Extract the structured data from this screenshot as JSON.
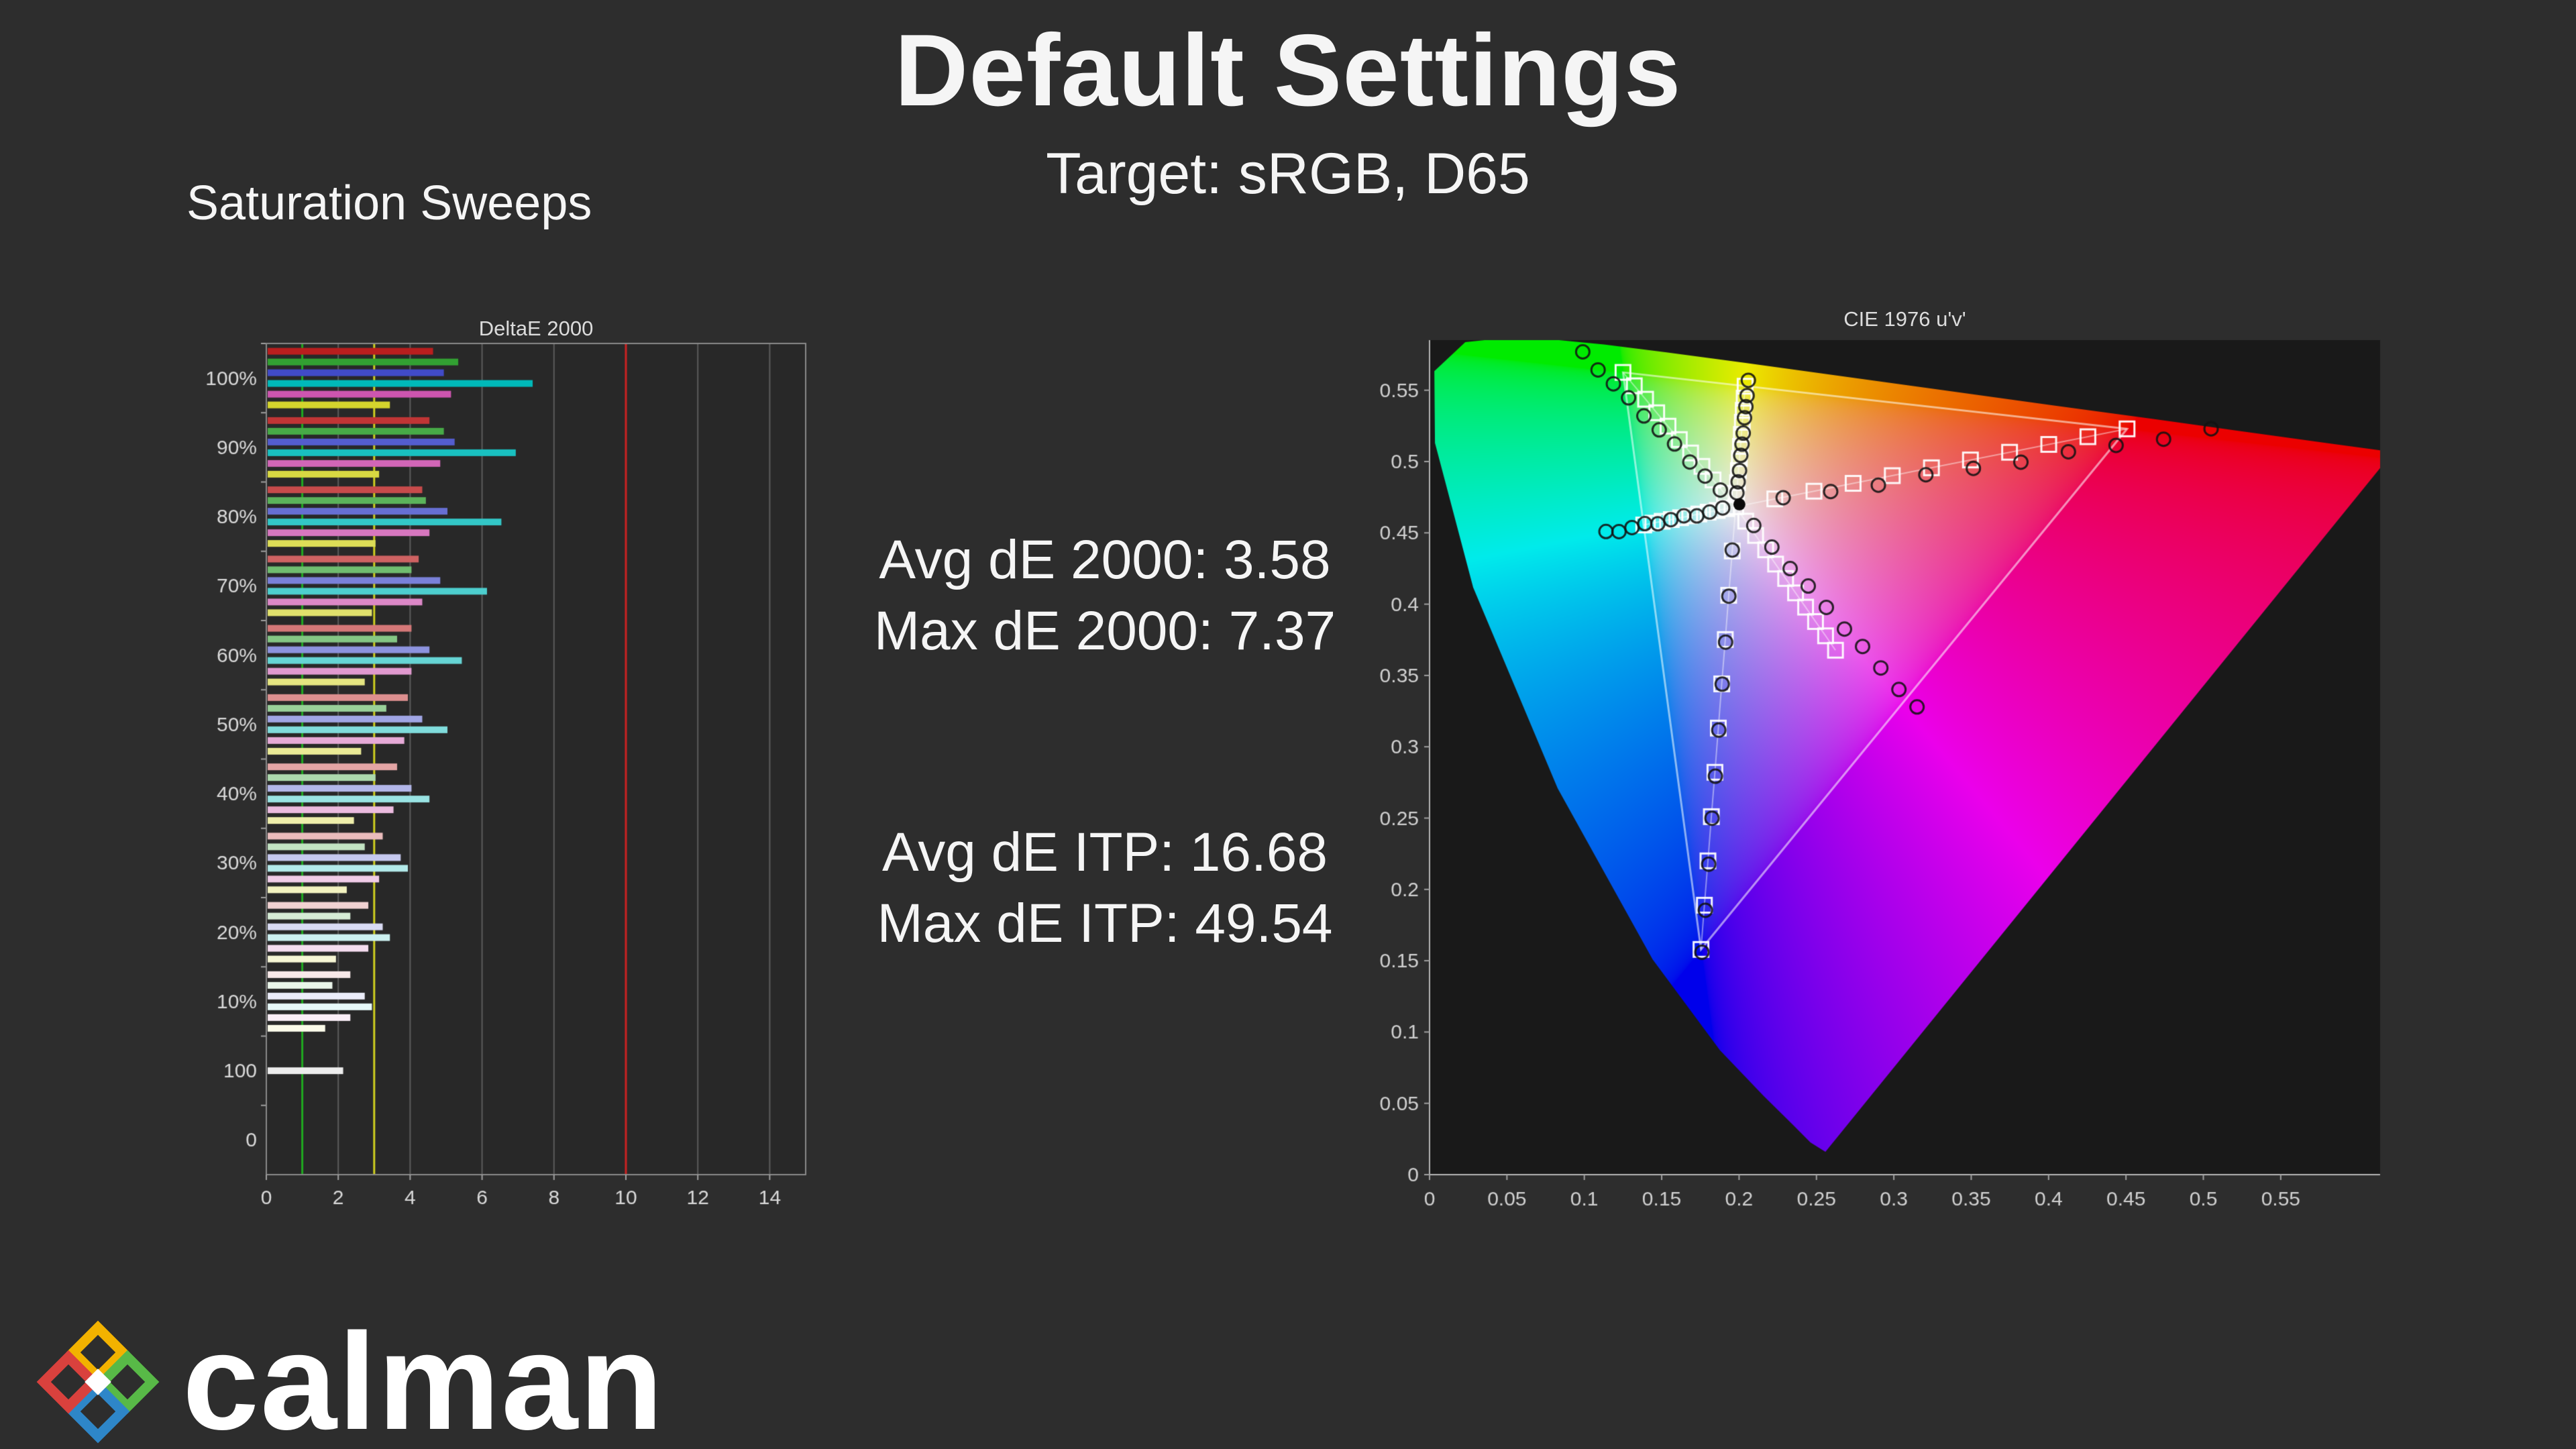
{
  "page": {
    "title": "Default Settings",
    "subtitle": "Target: sRGB, D65",
    "section_title": "Saturation Sweeps",
    "background": "#2d2d2d"
  },
  "stats": {
    "avg_de2000": "Avg dE 2000: 3.58",
    "max_de2000": "Max dE 2000: 7.37",
    "avg_deitp": "Avg dE ITP: 16.68",
    "max_deitp": "Max dE ITP: 49.54"
  },
  "logo": {
    "text": "calman"
  },
  "chart_data": [
    {
      "type": "bar",
      "title": "DeltaE 2000",
      "orientation": "horizontal",
      "categories": [
        "100%",
        "90%",
        "80%",
        "70%",
        "60%",
        "50%",
        "40%",
        "30%",
        "20%",
        "10%",
        "100",
        "0"
      ],
      "x_ticks": [
        0,
        2,
        4,
        6,
        8,
        10,
        12,
        14
      ],
      "xlim": [
        0,
        15
      ],
      "reference_lines": [
        {
          "value": 1,
          "color": "#1faa1f"
        },
        {
          "value": 3,
          "color": "#cfcf1f"
        },
        {
          "value": 10,
          "color": "#cc2222"
        }
      ],
      "series": [
        {
          "name": "Red",
          "rgb": [
            185,
            30,
            30
          ],
          "values": [
            4.6,
            4.5,
            4.3,
            4.2,
            4.0,
            3.9,
            3.6,
            3.2,
            2.8,
            2.3,
            null,
            null
          ]
        },
        {
          "name": "Green",
          "rgb": [
            50,
            160,
            50
          ],
          "values": [
            5.3,
            4.9,
            4.4,
            4.0,
            3.6,
            3.3,
            3.0,
            2.7,
            2.3,
            1.8,
            null,
            null
          ]
        },
        {
          "name": "Blue",
          "rgb": [
            65,
            75,
            200
          ],
          "values": [
            4.9,
            5.2,
            5.0,
            4.8,
            4.5,
            4.3,
            4.0,
            3.7,
            3.2,
            2.7,
            null,
            null
          ]
        },
        {
          "name": "Cyan",
          "rgb": [
            0,
            185,
            185
          ],
          "values": [
            7.37,
            6.9,
            6.5,
            6.1,
            5.4,
            5.0,
            4.5,
            3.9,
            3.4,
            2.9,
            null,
            null
          ]
        },
        {
          "name": "Magenta",
          "rgb": [
            205,
            85,
            175
          ],
          "values": [
            5.1,
            4.8,
            4.5,
            4.3,
            4.0,
            3.8,
            3.5,
            3.1,
            2.8,
            2.3,
            null,
            null
          ]
        },
        {
          "name": "Yellow",
          "rgb": [
            212,
            212,
            45
          ],
          "values": [
            3.4,
            3.1,
            3.0,
            2.9,
            2.7,
            2.6,
            2.4,
            2.2,
            1.9,
            1.6,
            null,
            null
          ]
        },
        {
          "name": "White",
          "color": "#ededed",
          "values": [
            null,
            null,
            null,
            null,
            null,
            null,
            null,
            null,
            null,
            null,
            2.1,
            null
          ]
        }
      ]
    },
    {
      "type": "scatter",
      "title": "CIE 1976 u'v'",
      "x_ticks": [
        0,
        0.05,
        0.1,
        0.15,
        0.2,
        0.25,
        0.3,
        0.35,
        0.4,
        0.45,
        0.5,
        0.55
      ],
      "y_ticks": [
        0,
        0.05,
        0.1,
        0.15,
        0.2,
        0.25,
        0.3,
        0.35,
        0.4,
        0.45,
        0.5,
        0.55
      ],
      "white_point": [
        0.1978,
        0.4683
      ],
      "measured_white": [
        0.2002,
        0.47
      ],
      "gamut_triangle": {
        "red": [
          0.4507,
          0.5229
        ],
        "green": [
          0.125,
          0.5625
        ],
        "blue": [
          0.1754,
          0.1579
        ]
      },
      "sweeps": [
        {
          "name": "red",
          "targets": [
            [
              0.2231,
              0.4738
            ],
            [
              0.2484,
              0.4792
            ],
            [
              0.2737,
              0.4847
            ],
            [
              0.299,
              0.4901
            ],
            [
              0.3243,
              0.4956
            ],
            [
              0.3495,
              0.5011
            ],
            [
              0.3748,
              0.5065
            ],
            [
              0.4001,
              0.512
            ],
            [
              0.4254,
              0.5174
            ],
            [
              0.4507,
              0.5229
            ]
          ],
          "measurements": [
            [
              0.2285,
              0.4737
            ],
            [
              0.2592,
              0.479
            ],
            [
              0.29,
              0.4844
            ],
            [
              0.3207,
              0.4898
            ],
            [
              0.3514,
              0.4952
            ],
            [
              0.3821,
              0.5005
            ],
            [
              0.4128,
              0.5059
            ],
            [
              0.4436,
              0.5113
            ],
            [
              0.4743,
              0.5166
            ],
            [
              0.505,
              0.522
            ]
          ]
        },
        {
          "name": "green",
          "targets": [
            [
              0.1905,
              0.4777
            ],
            [
              0.1832,
              0.4871
            ],
            [
              0.176,
              0.4966
            ],
            [
              0.1687,
              0.506
            ],
            [
              0.1614,
              0.5154
            ],
            [
              0.1541,
              0.5248
            ],
            [
              0.1468,
              0.5342
            ],
            [
              0.1396,
              0.5437
            ],
            [
              0.1323,
              0.5531
            ],
            [
              0.125,
              0.5625
            ]
          ],
          "measurements": [
            [
              0.1879,
              0.4791
            ],
            [
              0.178,
              0.4898
            ],
            [
              0.1682,
              0.5006
            ],
            [
              0.1583,
              0.5114
            ],
            [
              0.1484,
              0.5222
            ],
            [
              0.1385,
              0.5329
            ],
            [
              0.1286,
              0.5437
            ],
            [
              0.1188,
              0.5545
            ],
            [
              0.1089,
              0.5652
            ],
            [
              0.099,
              0.576
            ]
          ]
        },
        {
          "name": "blue",
          "targets": [
            [
              0.1956,
              0.4373
            ],
            [
              0.1933,
              0.4062
            ],
            [
              0.1911,
              0.3752
            ],
            [
              0.1888,
              0.3441
            ],
            [
              0.1866,
              0.3131
            ],
            [
              0.1844,
              0.2821
            ],
            [
              0.1821,
              0.251
            ],
            [
              0.1799,
              0.22
            ],
            [
              0.1776,
              0.1889
            ],
            [
              0.1754,
              0.1579
            ]
          ],
          "measurements": [
            [
              0.1956,
              0.437
            ],
            [
              0.1934,
              0.4056
            ],
            [
              0.1913,
              0.3743
            ],
            [
              0.1891,
              0.343
            ],
            [
              0.1869,
              0.3117
            ],
            [
              0.1847,
              0.2803
            ],
            [
              0.1825,
              0.249
            ],
            [
              0.1804,
              0.2177
            ],
            [
              0.1782,
              0.1863
            ],
            [
              0.176,
              0.155
            ]
          ]
        },
        {
          "name": "cyan",
          "targets": [
            [
              0.1919,
              0.467
            ],
            [
              0.1859,
              0.4657
            ],
            [
              0.18,
              0.4645
            ],
            [
              0.174,
              0.4632
            ],
            [
              0.1681,
              0.4619
            ],
            [
              0.1622,
              0.4606
            ],
            [
              0.1562,
              0.4593
            ],
            [
              0.1503,
              0.4581
            ],
            [
              0.1443,
              0.4568
            ],
            [
              0.1384,
              0.4555
            ]
          ],
          "measurements": [
            [
              0.1894,
              0.4665
            ],
            [
              0.181,
              0.4646
            ],
            [
              0.1727,
              0.4628
            ],
            [
              0.1643,
              0.461
            ],
            [
              0.1559,
              0.4592
            ],
            [
              0.1475,
              0.4573
            ],
            [
              0.1391,
              0.4555
            ],
            [
              0.1308,
              0.4537
            ],
            [
              0.1224,
              0.4518
            ],
            [
              0.114,
              0.45
            ]
          ]
        },
        {
          "name": "magenta",
          "targets": [
            [
              0.2043,
              0.4582
            ],
            [
              0.2107,
              0.4482
            ],
            [
              0.2172,
              0.4381
            ],
            [
              0.2236,
              0.4281
            ],
            [
              0.2301,
              0.418
            ],
            [
              0.2365,
              0.4079
            ],
            [
              0.243,
              0.3979
            ],
            [
              0.2494,
              0.3878
            ],
            [
              0.2559,
              0.3778
            ],
            [
              0.2623,
              0.3677
            ]
          ],
          "measurements": [
            [
              0.2095,
              0.4542
            ],
            [
              0.2212,
              0.44
            ],
            [
              0.233,
              0.4259
            ],
            [
              0.2447,
              0.4118
            ],
            [
              0.2564,
              0.3977
            ],
            [
              0.2681,
              0.3835
            ],
            [
              0.2798,
              0.3694
            ],
            [
              0.2916,
              0.3553
            ],
            [
              0.3033,
              0.3411
            ],
            [
              0.315,
              0.327
            ]
          ]
        },
        {
          "name": "yellow",
          "targets": [
            [
              0.1984,
              0.4768
            ],
            [
              0.199,
              0.4852
            ],
            [
              0.1996,
              0.4937
            ],
            [
              0.2002,
              0.5021
            ],
            [
              0.2009,
              0.5106
            ],
            [
              0.2015,
              0.519
            ],
            [
              0.2021,
              0.5275
            ],
            [
              0.2027,
              0.5359
            ],
            [
              0.2033,
              0.5444
            ],
            [
              0.2039,
              0.5528
            ]
          ],
          "measurements": [
            [
              0.1986,
              0.4771
            ],
            [
              0.1994,
              0.4858
            ],
            [
              0.2003,
              0.4946
            ],
            [
              0.2011,
              0.5034
            ],
            [
              0.2019,
              0.5122
            ],
            [
              0.2027,
              0.5209
            ],
            [
              0.2035,
              0.5297
            ],
            [
              0.2044,
              0.5385
            ],
            [
              0.2052,
              0.5472
            ],
            [
              0.206,
              0.556
            ]
          ]
        }
      ]
    }
  ]
}
